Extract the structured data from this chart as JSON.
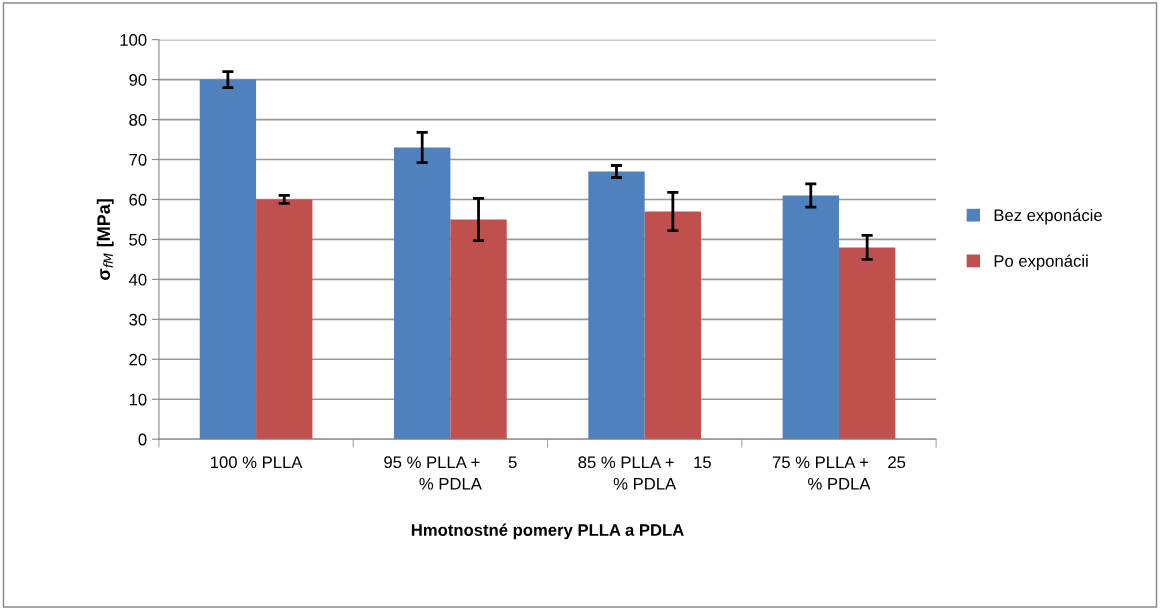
{
  "chart_data": {
    "type": "bar",
    "xlabel": "Hmotnostné pomery PLLA a PDLA",
    "ylabel": "σ$_{fM}$ [MPa]",
    "categories": [
      "100 % PLLA",
      "95 % PLLA +      5\n% PDLA",
      "85 % PLLA +    15\n% PDLA",
      "75 % PLLA +    25\n% PDLA"
    ],
    "series": [
      {
        "name": "Bez exponácie",
        "color": "#4f81bd",
        "values": [
          90,
          73,
          67,
          61
        ],
        "errors": [
          2,
          3.8,
          1.5,
          2.9
        ]
      },
      {
        "name": "Po exponácii",
        "color": "#c0504d",
        "values": [
          60,
          55,
          57,
          48
        ],
        "errors": [
          1,
          5.3,
          4.8,
          3
        ]
      }
    ],
    "ylim": [
      0,
      100
    ],
    "yticks": [
      0,
      10,
      20,
      30,
      40,
      50,
      60,
      70,
      80,
      90,
      100
    ],
    "grid": "y",
    "legend": "right"
  }
}
